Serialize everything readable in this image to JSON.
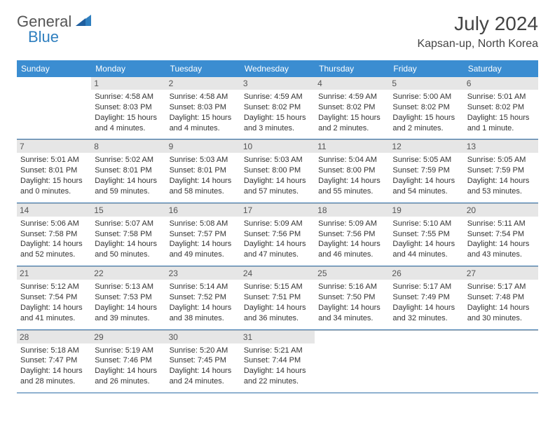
{
  "brand": {
    "part1": "General",
    "part2": "Blue"
  },
  "title": "July 2024",
  "location": "Kapsan-up, North Korea",
  "colors": {
    "header_bg": "#3b8dd1",
    "header_text": "#ffffff",
    "daynum_bg": "#e6e6e6",
    "border_bottom": "#2f6fa8",
    "text_color": "#333333",
    "brand_gray": "#555555",
    "brand_blue": "#2f7fbf"
  },
  "day_names": [
    "Sunday",
    "Monday",
    "Tuesday",
    "Wednesday",
    "Thursday",
    "Friday",
    "Saturday"
  ],
  "weeks": [
    [
      {
        "empty": true
      },
      {
        "num": "1",
        "sunrise": "Sunrise: 4:58 AM",
        "sunset": "Sunset: 8:03 PM",
        "day1": "Daylight: 15 hours",
        "day2": "and 4 minutes."
      },
      {
        "num": "2",
        "sunrise": "Sunrise: 4:58 AM",
        "sunset": "Sunset: 8:03 PM",
        "day1": "Daylight: 15 hours",
        "day2": "and 4 minutes."
      },
      {
        "num": "3",
        "sunrise": "Sunrise: 4:59 AM",
        "sunset": "Sunset: 8:02 PM",
        "day1": "Daylight: 15 hours",
        "day2": "and 3 minutes."
      },
      {
        "num": "4",
        "sunrise": "Sunrise: 4:59 AM",
        "sunset": "Sunset: 8:02 PM",
        "day1": "Daylight: 15 hours",
        "day2": "and 2 minutes."
      },
      {
        "num": "5",
        "sunrise": "Sunrise: 5:00 AM",
        "sunset": "Sunset: 8:02 PM",
        "day1": "Daylight: 15 hours",
        "day2": "and 2 minutes."
      },
      {
        "num": "6",
        "sunrise": "Sunrise: 5:01 AM",
        "sunset": "Sunset: 8:02 PM",
        "day1": "Daylight: 15 hours",
        "day2": "and 1 minute."
      }
    ],
    [
      {
        "num": "7",
        "sunrise": "Sunrise: 5:01 AM",
        "sunset": "Sunset: 8:01 PM",
        "day1": "Daylight: 15 hours",
        "day2": "and 0 minutes."
      },
      {
        "num": "8",
        "sunrise": "Sunrise: 5:02 AM",
        "sunset": "Sunset: 8:01 PM",
        "day1": "Daylight: 14 hours",
        "day2": "and 59 minutes."
      },
      {
        "num": "9",
        "sunrise": "Sunrise: 5:03 AM",
        "sunset": "Sunset: 8:01 PM",
        "day1": "Daylight: 14 hours",
        "day2": "and 58 minutes."
      },
      {
        "num": "10",
        "sunrise": "Sunrise: 5:03 AM",
        "sunset": "Sunset: 8:00 PM",
        "day1": "Daylight: 14 hours",
        "day2": "and 57 minutes."
      },
      {
        "num": "11",
        "sunrise": "Sunrise: 5:04 AM",
        "sunset": "Sunset: 8:00 PM",
        "day1": "Daylight: 14 hours",
        "day2": "and 55 minutes."
      },
      {
        "num": "12",
        "sunrise": "Sunrise: 5:05 AM",
        "sunset": "Sunset: 7:59 PM",
        "day1": "Daylight: 14 hours",
        "day2": "and 54 minutes."
      },
      {
        "num": "13",
        "sunrise": "Sunrise: 5:05 AM",
        "sunset": "Sunset: 7:59 PM",
        "day1": "Daylight: 14 hours",
        "day2": "and 53 minutes."
      }
    ],
    [
      {
        "num": "14",
        "sunrise": "Sunrise: 5:06 AM",
        "sunset": "Sunset: 7:58 PM",
        "day1": "Daylight: 14 hours",
        "day2": "and 52 minutes."
      },
      {
        "num": "15",
        "sunrise": "Sunrise: 5:07 AM",
        "sunset": "Sunset: 7:58 PM",
        "day1": "Daylight: 14 hours",
        "day2": "and 50 minutes."
      },
      {
        "num": "16",
        "sunrise": "Sunrise: 5:08 AM",
        "sunset": "Sunset: 7:57 PM",
        "day1": "Daylight: 14 hours",
        "day2": "and 49 minutes."
      },
      {
        "num": "17",
        "sunrise": "Sunrise: 5:09 AM",
        "sunset": "Sunset: 7:56 PM",
        "day1": "Daylight: 14 hours",
        "day2": "and 47 minutes."
      },
      {
        "num": "18",
        "sunrise": "Sunrise: 5:09 AM",
        "sunset": "Sunset: 7:56 PM",
        "day1": "Daylight: 14 hours",
        "day2": "and 46 minutes."
      },
      {
        "num": "19",
        "sunrise": "Sunrise: 5:10 AM",
        "sunset": "Sunset: 7:55 PM",
        "day1": "Daylight: 14 hours",
        "day2": "and 44 minutes."
      },
      {
        "num": "20",
        "sunrise": "Sunrise: 5:11 AM",
        "sunset": "Sunset: 7:54 PM",
        "day1": "Daylight: 14 hours",
        "day2": "and 43 minutes."
      }
    ],
    [
      {
        "num": "21",
        "sunrise": "Sunrise: 5:12 AM",
        "sunset": "Sunset: 7:54 PM",
        "day1": "Daylight: 14 hours",
        "day2": "and 41 minutes."
      },
      {
        "num": "22",
        "sunrise": "Sunrise: 5:13 AM",
        "sunset": "Sunset: 7:53 PM",
        "day1": "Daylight: 14 hours",
        "day2": "and 39 minutes."
      },
      {
        "num": "23",
        "sunrise": "Sunrise: 5:14 AM",
        "sunset": "Sunset: 7:52 PM",
        "day1": "Daylight: 14 hours",
        "day2": "and 38 minutes."
      },
      {
        "num": "24",
        "sunrise": "Sunrise: 5:15 AM",
        "sunset": "Sunset: 7:51 PM",
        "day1": "Daylight: 14 hours",
        "day2": "and 36 minutes."
      },
      {
        "num": "25",
        "sunrise": "Sunrise: 5:16 AM",
        "sunset": "Sunset: 7:50 PM",
        "day1": "Daylight: 14 hours",
        "day2": "and 34 minutes."
      },
      {
        "num": "26",
        "sunrise": "Sunrise: 5:17 AM",
        "sunset": "Sunset: 7:49 PM",
        "day1": "Daylight: 14 hours",
        "day2": "and 32 minutes."
      },
      {
        "num": "27",
        "sunrise": "Sunrise: 5:17 AM",
        "sunset": "Sunset: 7:48 PM",
        "day1": "Daylight: 14 hours",
        "day2": "and 30 minutes."
      }
    ],
    [
      {
        "num": "28",
        "sunrise": "Sunrise: 5:18 AM",
        "sunset": "Sunset: 7:47 PM",
        "day1": "Daylight: 14 hours",
        "day2": "and 28 minutes."
      },
      {
        "num": "29",
        "sunrise": "Sunrise: 5:19 AM",
        "sunset": "Sunset: 7:46 PM",
        "day1": "Daylight: 14 hours",
        "day2": "and 26 minutes."
      },
      {
        "num": "30",
        "sunrise": "Sunrise: 5:20 AM",
        "sunset": "Sunset: 7:45 PM",
        "day1": "Daylight: 14 hours",
        "day2": "and 24 minutes."
      },
      {
        "num": "31",
        "sunrise": "Sunrise: 5:21 AM",
        "sunset": "Sunset: 7:44 PM",
        "day1": "Daylight: 14 hours",
        "day2": "and 22 minutes."
      },
      {
        "empty": true
      },
      {
        "empty": true
      },
      {
        "empty": true
      }
    ]
  ]
}
